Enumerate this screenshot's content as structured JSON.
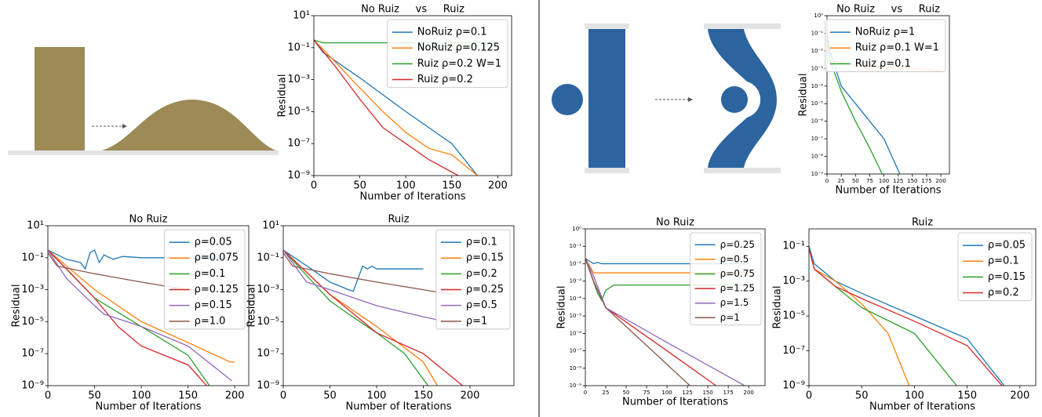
{
  "chart_data": [
    {
      "type": "line",
      "title": "No Ruiz     vs     Ruiz",
      "xlabel": "Number of Iterations",
      "ylabel": "Residual",
      "yscale": "log",
      "legend": "upper right",
      "xlim": [
        0,
        215
      ],
      "ylim": [
        1e-09,
        10
      ],
      "xticks": [
        0,
        50,
        100,
        150,
        200
      ],
      "yticks": [
        {
          "value": 10,
          "label": "10¹"
        },
        {
          "value": 0.1,
          "label": "10⁻¹"
        },
        {
          "value": 0.001,
          "label": "10⁻³"
        },
        {
          "value": 1e-05,
          "label": "10⁻⁵"
        },
        {
          "value": 1e-07,
          "label": "10⁻⁷"
        },
        {
          "value": 1e-09,
          "label": "10⁻⁹"
        }
      ],
      "series": [
        {
          "name": "NoRuiz ρ=0.1",
          "color": "#1f77b4",
          "x": [
            0,
            10,
            50,
            100,
            150,
            178
          ],
          "values": [
            0.3,
            0.05,
            0.0013,
            1e-05,
            1e-07,
            1e-09
          ]
        },
        {
          "name": "NoRuiz ρ=0.125",
          "color": "#ff7f0e",
          "x": [
            0,
            25,
            50,
            75,
            100,
            125,
            150,
            178
          ],
          "values": [
            0.3,
            0.01,
            0.0003,
            1e-05,
            5e-07,
            5e-08,
            2e-08,
            1e-09
          ]
        },
        {
          "name": "Ruiz ρ=0.2 W=1",
          "color": "#2ca02c",
          "x": [
            0,
            10,
            50,
            100,
            150,
            200
          ],
          "values": [
            0.3,
            0.2,
            0.2,
            0.2,
            0.2,
            0.2
          ]
        },
        {
          "name": "Ruiz ρ=0.2",
          "color": "#d62728",
          "x": [
            0,
            25,
            50,
            75,
            100,
            125,
            157
          ],
          "values": [
            0.3,
            0.005,
            6e-05,
            1e-06,
            1e-07,
            1e-08,
            1e-09
          ]
        }
      ]
    },
    {
      "type": "line",
      "title": "No Ruiz",
      "xlabel": "Number of Iterations",
      "ylabel": "Residual",
      "yscale": "log",
      "legend": "upper right",
      "xlim": [
        0,
        215
      ],
      "ylim": [
        1e-09,
        10
      ],
      "xticks": [
        0,
        50,
        100,
        150,
        200
      ],
      "yticks": [
        {
          "value": 10,
          "label": "10¹"
        },
        {
          "value": 0.1,
          "label": "10⁻¹"
        },
        {
          "value": 0.001,
          "label": "10⁻³"
        },
        {
          "value": 1e-05,
          "label": "10⁻⁵"
        },
        {
          "value": 1e-07,
          "label": "10⁻⁷"
        },
        {
          "value": 1e-09,
          "label": "10⁻⁹"
        }
      ],
      "series": [
        {
          "name": "ρ=0.05",
          "color": "#1f77b4",
          "x": [
            0,
            20,
            35,
            40,
            45,
            50,
            55,
            60,
            70,
            80,
            100,
            150,
            200
          ],
          "values": [
            0.3,
            0.08,
            0.05,
            0.02,
            0.2,
            0.3,
            0.05,
            0.15,
            0.08,
            0.12,
            0.1,
            0.1,
            0.1
          ]
        },
        {
          "name": "ρ=0.075",
          "color": "#ff7f0e",
          "x": [
            0,
            50,
            100,
            150,
            195,
            200
          ],
          "values": [
            0.3,
            0.001,
            1e-05,
            5e-07,
            3e-08,
            3e-08
          ]
        },
        {
          "name": "ρ=0.1",
          "color": "#2ca02c",
          "x": [
            0,
            50,
            100,
            150,
            173
          ],
          "values": [
            0.3,
            0.0003,
            5e-06,
            8e-08,
            1e-09
          ]
        },
        {
          "name": "ρ=0.125",
          "color": "#d62728",
          "x": [
            0,
            25,
            50,
            75,
            100,
            150,
            170
          ],
          "values": [
            0.3,
            0.01,
            0.0003,
            5e-06,
            3e-07,
            2e-08,
            1e-09
          ]
        },
        {
          "name": "ρ=0.15",
          "color": "#9467bd",
          "x": [
            0,
            20,
            50,
            60,
            100,
            150,
            197
          ],
          "values": [
            0.3,
            0.005,
            0.0001,
            3e-05,
            5e-06,
            3e-07,
            2e-09
          ]
        },
        {
          "name": "ρ=1.0",
          "color": "#8c564b",
          "x": [
            0,
            10,
            50,
            100,
            150,
            160
          ],
          "values": [
            0.2,
            0.03,
            0.01,
            0.003,
            0.001,
            0.0008
          ]
        }
      ]
    },
    {
      "type": "line",
      "title": "Ruiz",
      "xlabel": "Number of Iterations",
      "ylabel": "Residual",
      "yscale": "log",
      "legend": "upper right",
      "xlim": [
        0,
        247
      ],
      "ylim": [
        1e-09,
        10
      ],
      "xticks": [
        0,
        50,
        100,
        150,
        200
      ],
      "yticks": [
        {
          "value": 10,
          "label": "10¹"
        },
        {
          "value": 0.1,
          "label": "10⁻¹"
        },
        {
          "value": 0.001,
          "label": "10⁻³"
        },
        {
          "value": 1e-05,
          "label": "10⁻⁵"
        },
        {
          "value": 1e-07,
          "label": "10⁻⁷"
        },
        {
          "value": 1e-09,
          "label": "10⁻⁹"
        }
      ],
      "series": [
        {
          "name": "ρ=0.1",
          "color": "#1f77b4",
          "x": [
            0,
            30,
            50,
            70,
            75,
            80,
            85,
            90,
            95,
            100,
            110,
            150
          ],
          "values": [
            0.3,
            0.02,
            0.003,
            0.001,
            0.0008,
            0.005,
            0.03,
            0.02,
            0.03,
            0.02,
            0.02,
            0.02
          ]
        },
        {
          "name": "ρ=0.15",
          "color": "#ff7f0e",
          "x": [
            0,
            50,
            100,
            150,
            165
          ],
          "values": [
            0.3,
            0.0005,
            5e-06,
            3e-08,
            1e-09
          ]
        },
        {
          "name": "ρ=0.2",
          "color": "#2ca02c",
          "x": [
            0,
            50,
            70,
            100,
            130,
            155
          ],
          "values": [
            0.3,
            0.0002,
            3e-05,
            2e-06,
            1e-07,
            1e-09
          ]
        },
        {
          "name": "ρ=0.25",
          "color": "#d62728",
          "x": [
            0,
            50,
            100,
            150,
            192
          ],
          "values": [
            0.3,
            0.0005,
            2e-06,
            1e-07,
            1e-09
          ]
        },
        {
          "name": "ρ=0.5",
          "color": "#9467bd",
          "x": [
            0,
            25,
            50,
            100,
            150,
            200
          ],
          "values": [
            0.3,
            0.003,
            0.001,
            0.0001,
            2e-05,
            5e-06
          ]
        },
        {
          "name": "ρ=1",
          "color": "#8c564b",
          "x": [
            0,
            10,
            50,
            100,
            150,
            180
          ],
          "values": [
            0.2,
            0.03,
            0.01,
            0.003,
            0.001,
            0.0005
          ]
        }
      ]
    },
    {
      "type": "line",
      "title": "No Ruiz     vs     Ruiz",
      "xlabel": "Number of Iterations",
      "ylabel": "Residual",
      "yscale": "log",
      "legend": "upper right",
      "xlim": [
        0,
        215
      ],
      "ylim": [
        1e-09,
        1
      ],
      "xticks": [
        0,
        25,
        50,
        75,
        100,
        125,
        150,
        175,
        200
      ],
      "yticks": [
        {
          "value": 1,
          "label": "10⁰"
        },
        {
          "value": 0.1,
          "label": "10⁻¹"
        },
        {
          "value": 0.01,
          "label": "10⁻²"
        },
        {
          "value": 0.001,
          "label": "10⁻³"
        },
        {
          "value": 0.0001,
          "label": "10⁻⁴"
        },
        {
          "value": 1e-05,
          "label": "10⁻⁵"
        },
        {
          "value": 1e-06,
          "label": "10⁻⁶"
        },
        {
          "value": 1e-07,
          "label": "10⁻⁷"
        },
        {
          "value": 1e-08,
          "label": "10⁻⁸"
        },
        {
          "value": 1e-09,
          "label": "10⁻⁹"
        }
      ],
      "series": [
        {
          "name": "NoRuiz ρ=1",
          "color": "#1f77b4",
          "x": [
            0,
            5,
            25,
            50,
            75,
            100,
            128
          ],
          "values": [
            0.1,
            0.01,
            0.0001,
            1e-05,
            1e-06,
            1e-07,
            1e-09
          ]
        },
        {
          "name": "Ruiz ρ=0.1 W=1",
          "color": "#ff7f0e",
          "x": [
            0,
            5,
            25,
            50,
            100,
            150,
            200
          ],
          "values": [
            0.05,
            0.003,
            0.002,
            0.0015,
            0.0012,
            0.001,
            0.0007
          ]
        },
        {
          "name": "Ruiz ρ=0.1",
          "color": "#2ca02c",
          "x": [
            0,
            5,
            25,
            50,
            75,
            97
          ],
          "values": [
            0.1,
            0.003,
            5e-05,
            1e-06,
            3e-08,
            1e-09
          ]
        }
      ]
    },
    {
      "type": "line",
      "title": "No Ruiz",
      "xlabel": "Number of Iterations",
      "ylabel": "Residual",
      "yscale": "log",
      "legend": "upper right",
      "xlim": [
        0,
        220
      ],
      "ylim": [
        1e-09,
        1
      ],
      "xticks": [
        0,
        25,
        50,
        75,
        100,
        125,
        150,
        175,
        200
      ],
      "yticks": [
        {
          "value": 1,
          "label": "10⁰"
        },
        {
          "value": 0.1,
          "label": "10⁻¹"
        },
        {
          "value": 0.01,
          "label": "10⁻²"
        },
        {
          "value": 0.001,
          "label": "10⁻³"
        },
        {
          "value": 0.0001,
          "label": "10⁻⁴"
        },
        {
          "value": 1e-05,
          "label": "10⁻⁵"
        },
        {
          "value": 1e-06,
          "label": "10⁻⁶"
        },
        {
          "value": 1e-07,
          "label": "10⁻⁷"
        },
        {
          "value": 1e-08,
          "label": "10⁻⁸"
        },
        {
          "value": 1e-09,
          "label": "10⁻⁹"
        }
      ],
      "series": [
        {
          "name": "ρ=0.25",
          "color": "#1f77b4",
          "x": [
            0,
            10,
            15,
            20,
            200
          ],
          "values": [
            0.02,
            0.01,
            0.012,
            0.01,
            0.01
          ]
        },
        {
          "name": "ρ=0.5",
          "color": "#ff7f0e",
          "x": [
            0,
            10,
            200
          ],
          "values": [
            0.02,
            0.003,
            0.003
          ]
        },
        {
          "name": "ρ=0.75",
          "color": "#2ca02c",
          "x": [
            0,
            15,
            20,
            25,
            35,
            200
          ],
          "values": [
            0.02,
            0.0002,
            8e-05,
            0.0003,
            0.0006,
            0.0006
          ]
        },
        {
          "name": "ρ=1.25",
          "color": "#d62728",
          "x": [
            0,
            10,
            25,
            100,
            160
          ],
          "values": [
            0.02,
            0.001,
            3e-05,
            1e-07,
            1e-09
          ]
        },
        {
          "name": "ρ=1.5",
          "color": "#9467bd",
          "x": [
            0,
            10,
            25,
            100,
            195
          ],
          "values": [
            0.02,
            0.002,
            3e-05,
            3e-07,
            1e-09
          ]
        },
        {
          "name": "ρ=1",
          "color": "#8c564b",
          "x": [
            0,
            10,
            25,
            128
          ],
          "values": [
            0.02,
            0.001,
            3e-05,
            1e-09
          ]
        }
      ]
    },
    {
      "type": "line",
      "title": "Ruiz",
      "xlabel": "Number of Iterations",
      "ylabel": "Residual",
      "yscale": "log",
      "legend": "upper right",
      "xlim": [
        0,
        215
      ],
      "ylim": [
        1e-09,
        1
      ],
      "xticks": [
        0,
        50,
        100,
        150,
        200
      ],
      "yticks": [
        {
          "value": 0.1,
          "label": "10⁻¹"
        },
        {
          "value": 0.001,
          "label": "10⁻³"
        },
        {
          "value": 1e-05,
          "label": "10⁻⁵"
        },
        {
          "value": 1e-07,
          "label": "10⁻⁷"
        },
        {
          "value": 1e-09,
          "label": "10⁻⁹"
        }
      ],
      "series": [
        {
          "name": "ρ=0.05",
          "color": "#1f77b4",
          "x": [
            0,
            5,
            25,
            50,
            100,
            150,
            185
          ],
          "values": [
            0.1,
            0.01,
            0.001,
            0.0002,
            1e-05,
            5e-07,
            1e-09
          ]
        },
        {
          "name": "ρ=0.1",
          "color": "#ff7f0e",
          "x": [
            0,
            5,
            25,
            50,
            75,
            95
          ],
          "values": [
            0.08,
            0.005,
            0.001,
            5e-05,
            1e-06,
            1e-09
          ]
        },
        {
          "name": "ρ=0.15",
          "color": "#2ca02c",
          "x": [
            0,
            5,
            25,
            50,
            100,
            140
          ],
          "values": [
            0.08,
            0.005,
            0.0005,
            3e-05,
            1e-06,
            1e-09
          ]
        },
        {
          "name": "ρ=0.2",
          "color": "#d62728",
          "x": [
            0,
            5,
            25,
            50,
            100,
            150,
            183
          ],
          "values": [
            0.08,
            0.005,
            0.0005,
            0.0001,
            5e-06,
            2e-07,
            1e-09
          ]
        }
      ]
    }
  ]
}
